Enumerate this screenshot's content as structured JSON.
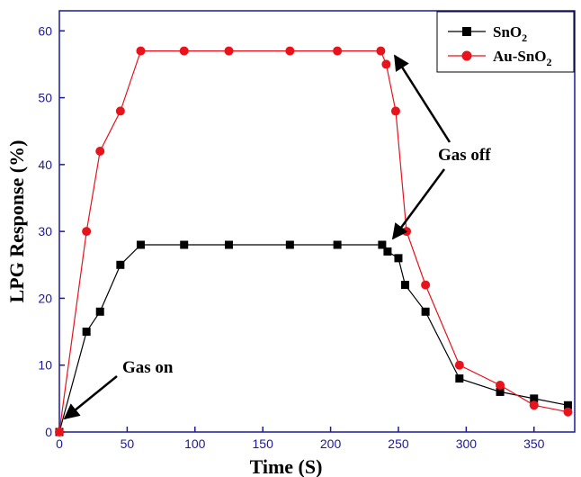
{
  "chart_data": {
    "type": "line",
    "xlabel": "Time (S)",
    "ylabel": "LPG Response (%)",
    "xlim": [
      0,
      380
    ],
    "ylim": [
      0,
      63
    ],
    "xticks": [
      0,
      50,
      100,
      150,
      200,
      250,
      300,
      350
    ],
    "yticks": [
      0,
      10,
      20,
      30,
      40,
      50,
      60
    ],
    "grid": false,
    "legend_position": "top-right",
    "series": [
      {
        "name": "SnO2",
        "color": "#000000",
        "marker": "square",
        "x": [
          0,
          20,
          30,
          45,
          60,
          92,
          125,
          170,
          205,
          238,
          242,
          250,
          255,
          270,
          295,
          325,
          350,
          375
        ],
        "y": [
          0,
          15,
          18,
          25,
          28,
          28,
          28,
          28,
          28,
          28,
          27,
          26,
          22,
          18,
          8,
          6,
          5,
          4
        ]
      },
      {
        "name": "Au-SnO2",
        "color": "#e8131b",
        "marker": "circle",
        "x": [
          0,
          20,
          30,
          45,
          60,
          92,
          125,
          170,
          205,
          237,
          241,
          248,
          256,
          270,
          295,
          325,
          350,
          375
        ],
        "y": [
          0,
          30,
          42,
          48,
          57,
          57,
          57,
          57,
          57,
          57,
          55,
          48,
          30,
          22,
          10,
          7,
          4,
          3
        ]
      }
    ],
    "annotations": [
      {
        "text": "Gas on",
        "x": 0,
        "y": 0
      },
      {
        "text": "Gas off",
        "x": 240,
        "y": 28
      }
    ]
  }
}
